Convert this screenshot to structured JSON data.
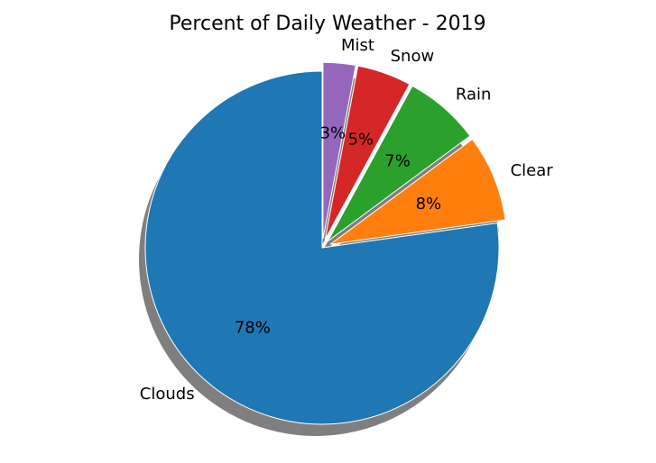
{
  "chart_data": {
    "type": "pie",
    "title": "Percent of Daily Weather - 2019",
    "start_angle_deg": 90,
    "direction": "counterclockwise",
    "shadow": true,
    "slices": [
      {
        "label": "Clouds",
        "value": 78,
        "pct_label": "78%",
        "color": "#1f77b4",
        "explode": false
      },
      {
        "label": "Clear",
        "value": 8,
        "pct_label": "8%",
        "color": "#ff7f0e",
        "explode": true
      },
      {
        "label": "Rain",
        "value": 7,
        "pct_label": "7%",
        "color": "#2ca02c",
        "explode": true
      },
      {
        "label": "Snow",
        "value": 5,
        "pct_label": "5%",
        "color": "#d62728",
        "explode": true
      },
      {
        "label": "Mist",
        "value": 3,
        "pct_label": "3%",
        "color": "#9467bd",
        "explode": true
      }
    ]
  }
}
